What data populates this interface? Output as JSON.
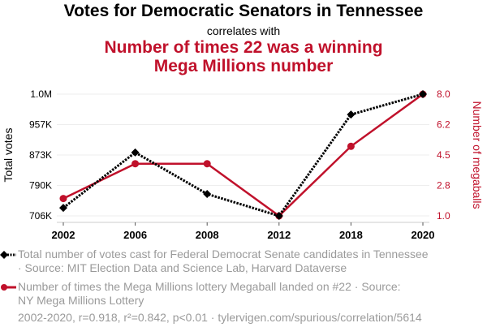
{
  "header": {
    "title": "Votes for Democratic Senators in Tennessee",
    "subtitle": "correlates with",
    "title2_line1": "Number of times 22 was a winning",
    "title2_line2": "Mega Millions number"
  },
  "colors": {
    "series1": "#000000",
    "series2": "#c0112b",
    "grid": "#eeeeee",
    "legend_text": "#9a9a9a"
  },
  "chart_data": {
    "type": "line",
    "title": "Votes for Democratic Senators in Tennessee correlates with Number of times 22 was a winning Mega Millions number",
    "categories": [
      "2002",
      "2006",
      "2008",
      "2012",
      "2018",
      "2020"
    ],
    "ylabel_left": "Total votes",
    "ylabel_right": "Number of megaballs",
    "ylim_left": [
      706000,
      1040000
    ],
    "ylim_right": [
      1.0,
      8.0
    ],
    "yticks_left": [
      "706K",
      "790K",
      "873K",
      "957K",
      "1.0M"
    ],
    "yticks_right": [
      "1.0",
      "2.8",
      "4.5",
      "6.2",
      "8.0"
    ],
    "grid": true,
    "legend_position": "bottom",
    "series": [
      {
        "name": "Total number of votes cast for Federal Democrat Senate candidates in Tennessee · Source: MIT Election Data and Science Lab, Harvard Dataverse",
        "axis": "left",
        "style": "dotted",
        "marker": "diamond",
        "values": [
          728000,
          880000,
          766000,
          706000,
          984000,
          1040000
        ]
      },
      {
        "name": "Number of times the Mega Millions lottery Megaball landed on #22 · Source: NY Mega Millions Lottery",
        "axis": "right",
        "style": "solid",
        "marker": "circle",
        "values": [
          2,
          4,
          4,
          1,
          5,
          8
        ]
      }
    ]
  },
  "legend": {
    "item1_line1": "Total number of votes cast for Federal Democrat Senate candidates in Tennessee",
    "item1_line2": "· Source: MIT Election Data and Science Lab, Harvard Dataverse",
    "item2_line1": "Number of times the Mega Millions lottery Megaball landed on #22 · Source:",
    "item2_line2": "NY Mega Millions Lottery"
  },
  "footer": "2002-2020, r=0.918, r²=0.842, p<0.01 · tylervigen.com/spurious/correlation/5614"
}
